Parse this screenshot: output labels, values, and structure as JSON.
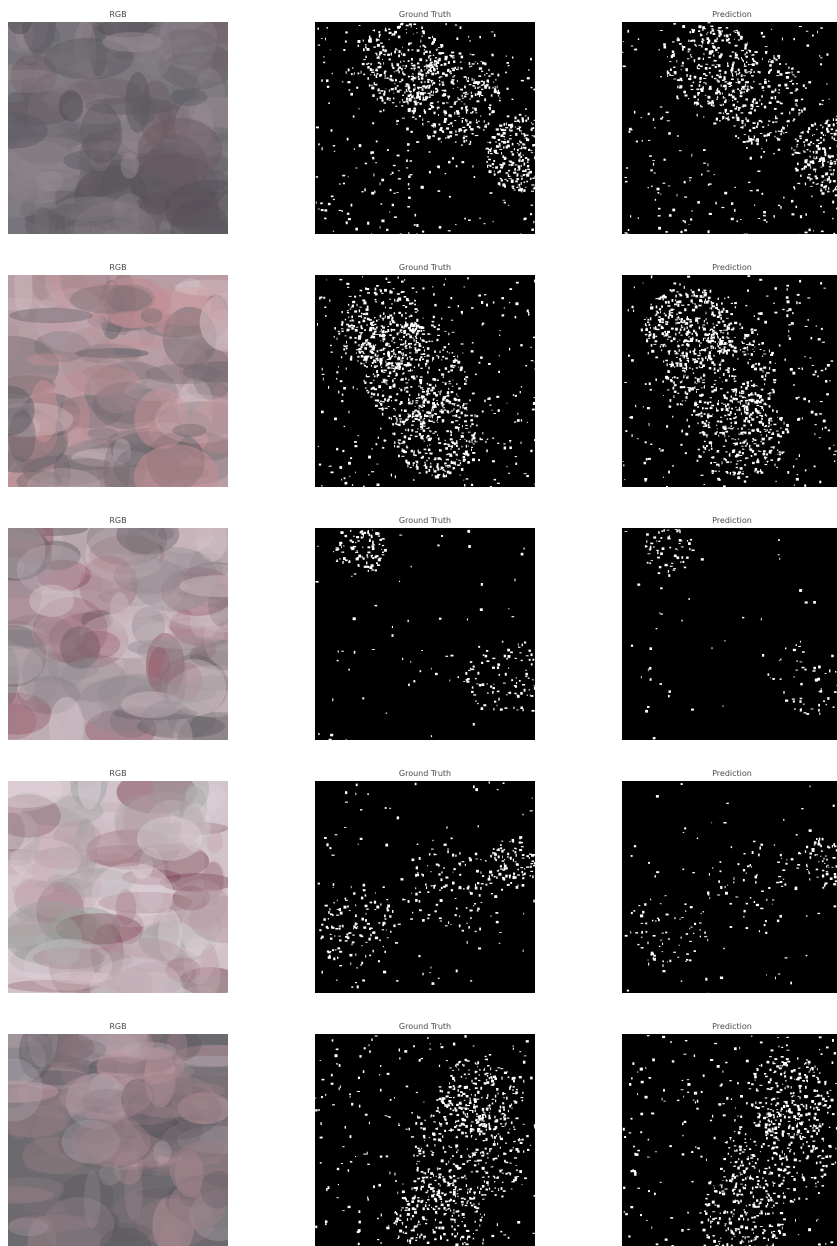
{
  "figure": {
    "columns": [
      {
        "key": "rgb",
        "title": "RGB"
      },
      {
        "key": "ground_truth",
        "title": "Ground Truth"
      },
      {
        "key": "prediction",
        "title": "Prediction"
      }
    ],
    "rows": [
      {
        "rgb_title": "RGB",
        "gt_title": "Ground Truth",
        "pred_title": "Prediction",
        "rgb_palette": [
          "#77757b",
          "#5d5b62",
          "#8a8288",
          "#6b5d63",
          "#9a8c94",
          "#534e55"
        ],
        "mask_coverage": {
          "ground_truth": 0.22,
          "prediction": 0.19
        }
      },
      {
        "rgb_title": "RGB",
        "gt_title": "Ground Truth",
        "pred_title": "Prediction",
        "rgb_palette": [
          "#b79ea5",
          "#c88f96",
          "#d9c7cd",
          "#6d686d",
          "#a8868e",
          "#5a5a5f"
        ],
        "mask_coverage": {
          "ground_truth": 0.24,
          "prediction": 0.23
        }
      },
      {
        "rgb_title": "RGB",
        "gt_title": "Ground Truth",
        "pred_title": "Prediction",
        "rgb_palette": [
          "#b9a7ae",
          "#c9b5bb",
          "#8f8a8f",
          "#5c5a5e",
          "#8e5060",
          "#d3c3c9"
        ],
        "mask_coverage": {
          "ground_truth": 0.05,
          "prediction": 0.03
        }
      },
      {
        "rgb_title": "RGB",
        "gt_title": "Ground Truth",
        "pred_title": "Prediction",
        "rgb_palette": [
          "#d2c2ca",
          "#c8a8b2",
          "#9aa19e",
          "#b49aa2",
          "#7c4654",
          "#e0d3da"
        ],
        "mask_coverage": {
          "ground_truth": 0.08,
          "prediction": 0.05
        }
      },
      {
        "rgb_title": "RGB",
        "gt_title": "Ground Truth",
        "pred_title": "Prediction",
        "rgb_palette": [
          "#6c6a6e",
          "#8a7b82",
          "#c59aa4",
          "#b2aab2",
          "#55535a",
          "#9d8188"
        ],
        "mask_coverage": {
          "ground_truth": 0.18,
          "prediction": 0.17
        }
      }
    ],
    "colors": {
      "background": "#ffffff",
      "mask_background": "#000000",
      "mask_foreground": "#ffffff",
      "title_text": "#4a4a4a"
    }
  }
}
